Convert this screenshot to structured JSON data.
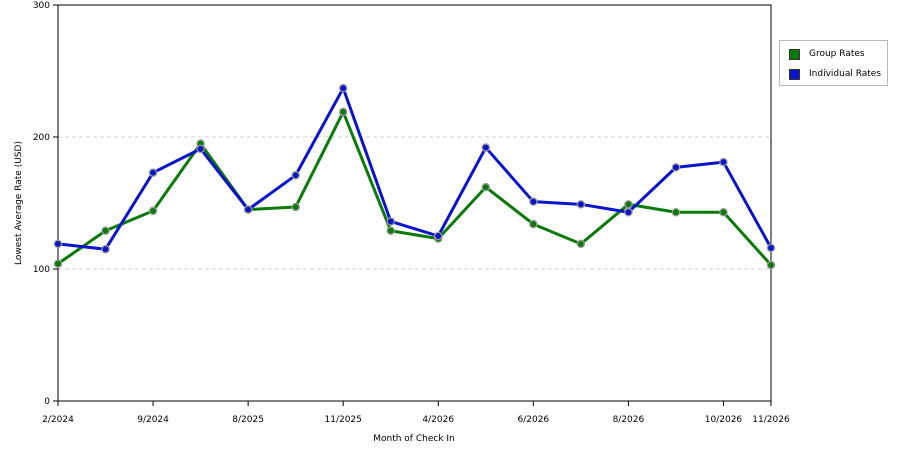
{
  "chart_data": {
    "type": "line",
    "title": "",
    "xlabel": "Month of Check In",
    "ylabel": "Lowest Average Rate (USD)",
    "ylim": [
      0,
      300
    ],
    "yticks": [
      "0",
      "100",
      "200",
      "300"
    ],
    "x_tick_labels": [
      {
        "index": 0,
        "label": "2/2024"
      },
      {
        "index": 2,
        "label": "9/2024"
      },
      {
        "index": 4,
        "label": "8/2025"
      },
      {
        "index": 6,
        "label": "11/2025"
      },
      {
        "index": 8,
        "label": "4/2026"
      },
      {
        "index": 10,
        "label": "6/2026"
      },
      {
        "index": 12,
        "label": "8/2026"
      },
      {
        "index": 14,
        "label": "10/2026"
      },
      {
        "index": 15,
        "label": "11/2026"
      }
    ],
    "grid": true,
    "legend_position": "right",
    "series": [
      {
        "name": "Group Rates",
        "color": "#0b7a0b",
        "values": [
          104,
          129,
          144,
          195,
          145,
          147,
          219,
          129,
          123,
          162,
          134,
          119,
          149,
          143,
          143,
          103
        ]
      },
      {
        "name": "Individual Rates",
        "color": "#0a14c8",
        "values": [
          119,
          115,
          173,
          191,
          145,
          171,
          237,
          136,
          125,
          192,
          151,
          149,
          143,
          177,
          181,
          116
        ]
      }
    ]
  }
}
